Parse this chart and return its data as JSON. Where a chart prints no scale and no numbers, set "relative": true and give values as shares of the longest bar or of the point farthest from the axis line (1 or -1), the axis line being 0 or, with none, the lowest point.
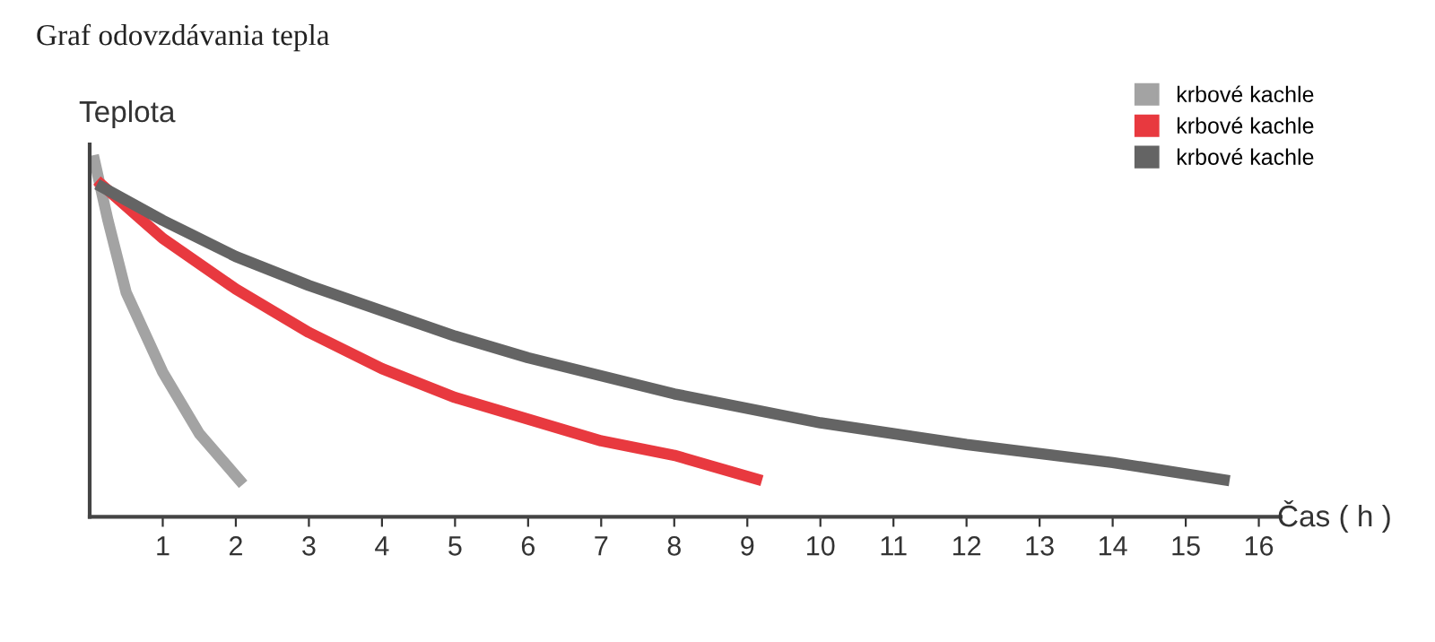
{
  "chart_data": {
    "type": "line",
    "title": "Graf odovzdávania tepla",
    "ylabel": "Teplota",
    "xlabel": "Čas ( h )",
    "relative": true,
    "xlim": [
      0,
      16.3
    ],
    "xticks": [
      1,
      2,
      3,
      4,
      5,
      6,
      7,
      8,
      9,
      10,
      11,
      12,
      13,
      14,
      15,
      16
    ],
    "legend": "top right",
    "grid": false,
    "marker": "none",
    "line_style": "solid",
    "series": [
      {
        "name": "krbové kachle",
        "color": "#a3a3a3",
        "x": [
          0.05,
          0.25,
          0.5,
          1,
          1.5,
          2.1
        ],
        "values": [
          1.0,
          0.82,
          0.62,
          0.4,
          0.23,
          0.09
        ]
      },
      {
        "name": "krbové kachle",
        "color": "#e8393f",
        "x": [
          0.1,
          1,
          2,
          3,
          4,
          5,
          6,
          7,
          8,
          9.2
        ],
        "values": [
          0.93,
          0.77,
          0.63,
          0.51,
          0.41,
          0.33,
          0.27,
          0.21,
          0.17,
          0.1
        ]
      },
      {
        "name": "krbové kachle",
        "color": "#646464",
        "x": [
          0.1,
          1,
          2,
          3,
          4,
          5,
          6,
          8,
          10,
          12,
          14,
          15.6
        ],
        "values": [
          0.92,
          0.82,
          0.72,
          0.64,
          0.57,
          0.5,
          0.44,
          0.34,
          0.26,
          0.2,
          0.15,
          0.1
        ]
      }
    ]
  }
}
